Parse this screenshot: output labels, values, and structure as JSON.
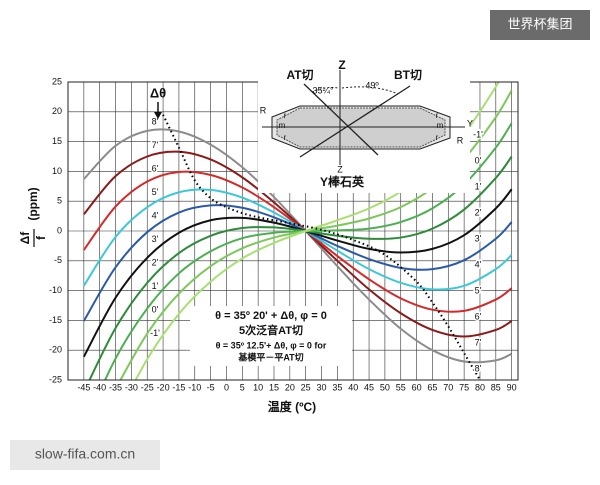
{
  "chart_data": {
    "type": "line",
    "x_label": "温度 (ºC)",
    "y_label": {
      "numerator": "Δf",
      "denominator": "f",
      "unit": "(ppm)"
    },
    "delta_label": "Δθ",
    "annotations": [
      "θ = 35º 20' + Δθ, φ = 0",
      "5次泛音AT切",
      "θ = 35º 12.5'+ Δθ, φ = 0 for",
      "基模平－平AT切"
    ],
    "x": [
      -45,
      -35,
      -25,
      -15,
      -5,
      5,
      15,
      25,
      35,
      45,
      55,
      65,
      75,
      85,
      90
    ],
    "series": [
      {
        "name": "8'",
        "color": "#8c8c8c",
        "values": [
          8.7,
          14.3,
          16.8,
          16.7,
          14.5,
          10.7,
          5.7,
          0,
          -5.9,
          -11.5,
          -16.4,
          -20.0,
          -21.9,
          -21.7,
          -20.6
        ]
      },
      {
        "name": "7'",
        "color": "#8b1a1a",
        "values": [
          2.8,
          9.2,
          12.5,
          13.3,
          12.0,
          9.0,
          4.8,
          0,
          -5.0,
          -9.8,
          -13.8,
          -16.6,
          -17.7,
          -16.6,
          -15.1
        ]
      },
      {
        "name": "6'",
        "color": "#d42a2a",
        "values": [
          -3.2,
          4.1,
          8.3,
          9.9,
          9.4,
          7.3,
          4.0,
          0,
          -4.2,
          -8.1,
          -11.3,
          -13.2,
          -13.4,
          -11.5,
          -9.6
        ]
      },
      {
        "name": "5'",
        "color": "#3cc8d8",
        "values": [
          -9.2,
          -1.0,
          4.0,
          6.5,
          6.9,
          5.6,
          3.1,
          0,
          -3.3,
          -6.4,
          -8.7,
          -9.8,
          -9.2,
          -6.4,
          -4.0
        ]
      },
      {
        "name": "4'",
        "color": "#2a5aa8",
        "values": [
          -15.1,
          -6.1,
          -0.2,
          3.1,
          4.3,
          3.9,
          2.3,
          0,
          -2.5,
          -4.7,
          -6.2,
          -6.4,
          -4.9,
          -1.3,
          1.5
        ]
      },
      {
        "name": "3'",
        "color": "#111111",
        "values": [
          -21.1,
          -11.2,
          -4.5,
          -0.3,
          1.8,
          2.2,
          1.4,
          0,
          -1.6,
          -3.0,
          -3.6,
          -3.0,
          -0.7,
          3.8,
          7.0
        ]
      },
      {
        "name": "2'",
        "color": "#2e8b3a",
        "values": [
          -27.0,
          -16.3,
          -8.7,
          -3.7,
          -0.8,
          0.5,
          0.6,
          0,
          -0.8,
          -1.3,
          -1.1,
          0.4,
          3.6,
          8.9,
          12.5
        ]
      },
      {
        "name": "1'",
        "color": "#4caf50",
        "values": [
          -33.0,
          -21.4,
          -13.0,
          -7.1,
          -3.4,
          -1.2,
          -0.3,
          0,
          0.1,
          0.4,
          1.5,
          3.8,
          7.8,
          14.0,
          18.1
        ]
      },
      {
        "name": "0'",
        "color": "#7cc85a",
        "values": [
          null,
          -26.5,
          -17.2,
          -10.5,
          -5.9,
          -2.9,
          -1.1,
          0,
          0.9,
          2.1,
          4.0,
          7.2,
          12.1,
          19.1,
          23.6
        ]
      },
      {
        "name": "-1'",
        "color": "#a8e070",
        "values": [
          null,
          -31.6,
          -21.5,
          -13.9,
          -8.5,
          -4.6,
          -2.0,
          0,
          1.8,
          3.8,
          6.6,
          10.6,
          16.3,
          24.2,
          29.1
        ]
      }
    ],
    "locus": {
      "color": "#000000",
      "x": [
        -20,
        -15,
        -10,
        -5,
        0,
        5,
        10,
        20,
        30,
        40,
        50,
        60,
        65,
        70,
        75,
        80
      ],
      "values": [
        19.5,
        14,
        8.5,
        5.5,
        4,
        3,
        2.3,
        1.3,
        0.2,
        -1.5,
        -4,
        -8.5,
        -12,
        -16,
        -20.5,
        -25
      ]
    },
    "xlim": [
      -50,
      92
    ],
    "ylim": [
      -25,
      25
    ],
    "xticks": [
      -45,
      -40,
      -35,
      -30,
      -25,
      -20,
      -15,
      -10,
      -5,
      0,
      5,
      10,
      15,
      20,
      25,
      30,
      35,
      40,
      45,
      50,
      55,
      60,
      65,
      70,
      75,
      80,
      85,
      90
    ],
    "yticks": [
      -25,
      -20,
      -15,
      -10,
      -5,
      0,
      5,
      10,
      15,
      20,
      25
    ],
    "grid": true
  },
  "inset": {
    "at_cut": "AT切",
    "bt_cut": "BT切",
    "z_top": "Z",
    "z_bottom": "Z",
    "angle_at": "35¼°",
    "angle_bt": "49º",
    "y_axis": "Y",
    "parts": [
      "R",
      "r",
      "m",
      "r",
      "r",
      "m",
      "r",
      "R"
    ],
    "caption": "Y棒石英"
  },
  "watermarks": {
    "top": "世界杯集团",
    "bottom": "slow-fifa.com.cn"
  }
}
